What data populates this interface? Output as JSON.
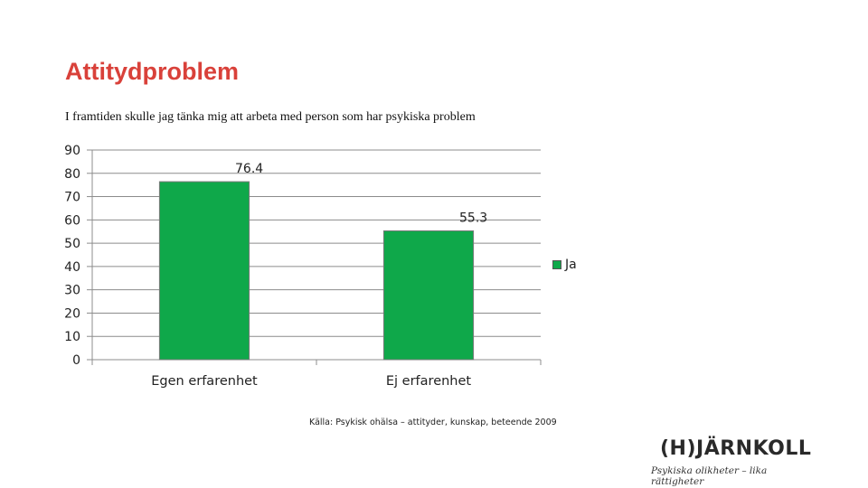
{
  "slide": {
    "title": "Attitydproblem",
    "source": "Källa: Psykisk ohälsa – attityder, kunskap, beteende 2009"
  },
  "logo": {
    "name": "(H)JÄRNKOLL",
    "tagline": "Psykiska olikheter – lika rättigheter"
  },
  "colors": {
    "title": "#d9413a",
    "bar": "#0fa84a",
    "bar_border": "#7a7a7a"
  },
  "chart_data": {
    "type": "bar",
    "title": "I framtiden skulle jag tänka mig att arbeta med person som har psykiska problem",
    "categories": [
      "Egen erfarenhet",
      "Ej  erfarenhet"
    ],
    "series": [
      {
        "name": "Ja",
        "values": [
          76.4,
          55.3
        ]
      }
    ],
    "data_labels": [
      "76.4",
      "55.3"
    ],
    "ylim": [
      0,
      90
    ],
    "yticks": [
      0,
      10,
      20,
      30,
      40,
      50,
      60,
      70,
      80,
      90
    ],
    "grid": true,
    "legend": "right"
  }
}
